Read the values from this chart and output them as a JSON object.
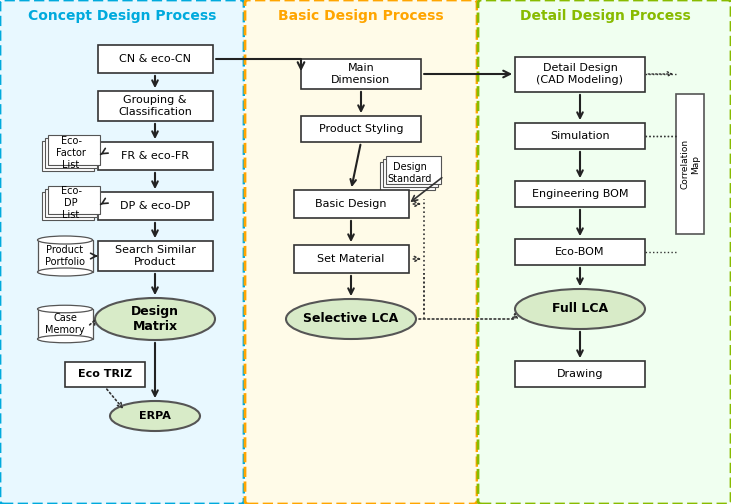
{
  "title_concept": "Concept Design Process",
  "title_basic": "Basic Design Process",
  "title_detail": "Detail Design Process",
  "title_concept_color": "#00AADD",
  "title_basic_color": "#FFA500",
  "title_detail_color": "#88BB00",
  "bg_concept": "#E8F8FF",
  "bg_basic": "#FFFBE8",
  "bg_detail": "#F0FFF0",
  "box_fill": "#FFFFFF",
  "box_edge": "#333333",
  "ellipse_fill": "#D8EBC8",
  "ellipse_edge": "#555555",
  "arrow_color": "#222222",
  "dashed_color": "#333333"
}
